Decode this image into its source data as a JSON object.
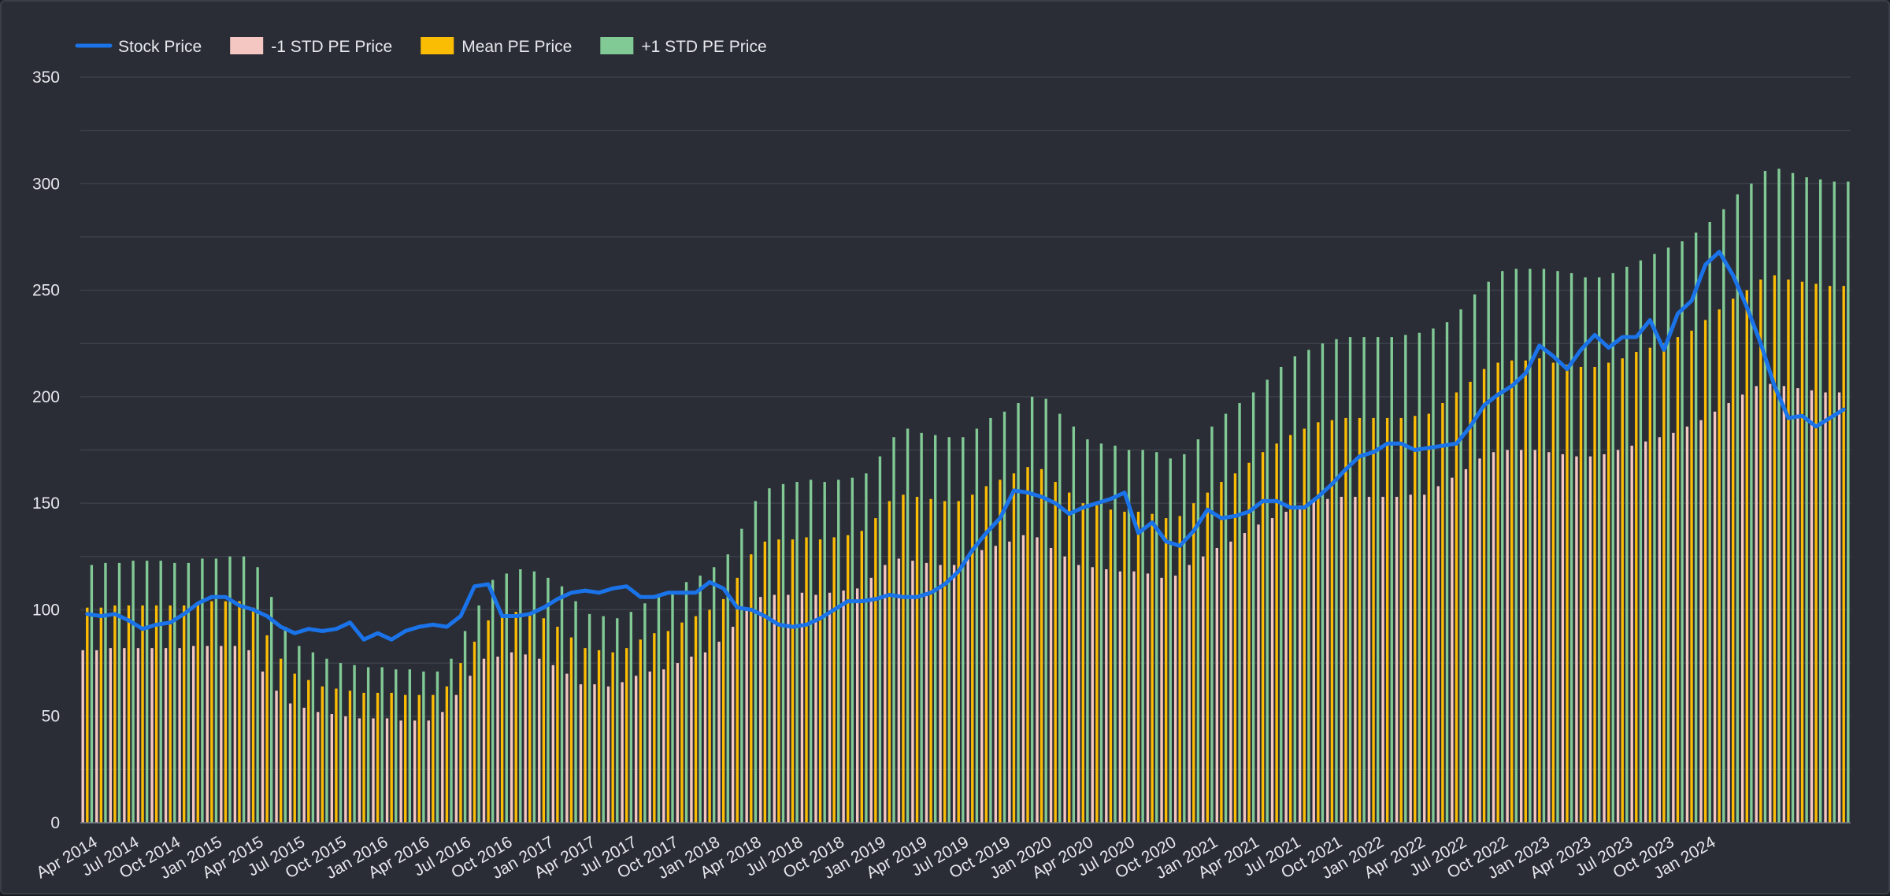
{
  "chart_data": {
    "type": "bar",
    "title": "",
    "xlabel": "",
    "ylabel": "",
    "ylim": [
      0,
      350
    ],
    "yticks": [
      "0",
      "50",
      "100",
      "150",
      "200",
      "250",
      "300",
      "350"
    ],
    "grid": true,
    "legend_position": "top-left",
    "x_tick_labels": [
      "Apr 2014",
      "Jul 2014",
      "Oct 2014",
      "Jan 2015",
      "Apr 2015",
      "Jul 2015",
      "Oct 2015",
      "Jan 2016",
      "Apr 2016",
      "Jul 2016",
      "Oct 2016",
      "Jan 2017",
      "Apr 2017",
      "Jul 2017",
      "Oct 2017",
      "Jan 2018",
      "Apr 2018",
      "Jul 2018",
      "Oct 2018",
      "Jan 2019",
      "Apr 2019",
      "Jul 2019",
      "Oct 2019",
      "Jan 2020",
      "Apr 2020",
      "Jul 2020",
      "Oct 2020",
      "Jan 2021",
      "Apr 2021",
      "Jul 2021",
      "Oct 2021",
      "Jan 2022",
      "Apr 2022",
      "Jul 2022",
      "Oct 2022",
      "Jan 2023",
      "Apr 2023",
      "Jul 2023",
      "Oct 2023",
      "Jan 2024"
    ],
    "x_start_month": "2014-04",
    "series": [
      {
        "name": "Stock Price",
        "kind": "line",
        "color": "#1a73e8",
        "values": [
          98,
          97,
          98,
          95,
          91,
          93,
          94,
          98,
          103,
          106,
          106,
          102,
          100,
          97,
          92,
          89,
          91,
          90,
          91,
          94,
          86,
          89,
          86,
          90,
          92,
          93,
          92,
          97,
          111,
          112,
          97,
          97,
          98,
          101,
          105,
          108,
          109,
          108,
          110,
          111,
          106,
          106,
          108,
          108,
          108,
          113,
          110,
          101,
          100,
          97,
          93,
          92,
          93,
          96,
          100,
          104,
          104,
          105,
          107,
          106,
          106,
          108,
          112,
          118,
          128,
          136,
          143,
          156,
          155,
          153,
          150,
          145,
          148,
          150,
          152,
          155,
          136,
          141,
          132,
          130,
          137,
          147,
          143,
          144,
          146,
          151,
          151,
          148,
          148,
          153,
          159,
          166,
          172,
          174,
          178,
          178,
          175,
          176,
          177,
          178,
          186,
          196,
          201,
          205,
          211,
          224,
          219,
          213,
          222,
          229,
          223,
          228,
          228,
          236,
          222,
          239,
          245,
          262,
          268,
          257,
          242,
          225,
          205,
          190,
          191,
          186,
          190,
          194
        ]
      },
      {
        "name": "-1 STD PE Price",
        "kind": "bar",
        "color": "#f4c7c3",
        "values": [
          81,
          81,
          82,
          82,
          82,
          82,
          82,
          82,
          83,
          83,
          83,
          83,
          81,
          71,
          62,
          56,
          54,
          52,
          51,
          50,
          49,
          49,
          49,
          48,
          48,
          48,
          52,
          60,
          69,
          77,
          78,
          80,
          79,
          77,
          74,
          70,
          65,
          65,
          64,
          66,
          69,
          71,
          72,
          75,
          78,
          80,
          85,
          92,
          101,
          106,
          107,
          107,
          108,
          107,
          108,
          109,
          110,
          115,
          121,
          124,
          123,
          122,
          121,
          121,
          124,
          128,
          130,
          132,
          135,
          134,
          129,
          125,
          121,
          120,
          119,
          118,
          118,
          117,
          115,
          116,
          121,
          125,
          129,
          132,
          136,
          140,
          143,
          146,
          149,
          151,
          152,
          153,
          153,
          153,
          153,
          153,
          154,
          154,
          158,
          162,
          166,
          171,
          174,
          175,
          175,
          175,
          174,
          173,
          172,
          172,
          173,
          175,
          177,
          179,
          181,
          183,
          186,
          189,
          193,
          197,
          201,
          205,
          206,
          205,
          204,
          203,
          202,
          202
        ]
      },
      {
        "name": "Mean PE Price",
        "kind": "bar",
        "color": "#fbbc04",
        "values": [
          101,
          101,
          102,
          102,
          102,
          102,
          102,
          102,
          103,
          104,
          104,
          104,
          101,
          88,
          77,
          70,
          67,
          64,
          63,
          62,
          61,
          61,
          61,
          60,
          60,
          60,
          64,
          75,
          85,
          95,
          97,
          99,
          98,
          96,
          92,
          87,
          82,
          81,
          80,
          82,
          86,
          89,
          90,
          94,
          97,
          100,
          105,
          115,
          126,
          132,
          133,
          133,
          134,
          133,
          134,
          135,
          137,
          143,
          151,
          154,
          153,
          152,
          151,
          151,
          154,
          158,
          161,
          164,
          167,
          166,
          160,
          155,
          150,
          149,
          147,
          146,
          146,
          145,
          143,
          144,
          150,
          155,
          160,
          164,
          169,
          174,
          178,
          182,
          185,
          188,
          189,
          190,
          190,
          190,
          190,
          190,
          191,
          192,
          197,
          202,
          207,
          213,
          216,
          217,
          217,
          218,
          216,
          215,
          214,
          214,
          216,
          218,
          221,
          223,
          225,
          228,
          231,
          236,
          241,
          246,
          250,
          255,
          257,
          255,
          254,
          253,
          252,
          252
        ]
      },
      {
        "name": "+1 STD PE Price",
        "kind": "bar",
        "color": "#81c995",
        "values": [
          121,
          122,
          122,
          123,
          123,
          123,
          122,
          122,
          124,
          124,
          125,
          125,
          120,
          106,
          92,
          83,
          80,
          77,
          75,
          74,
          73,
          73,
          72,
          72,
          71,
          71,
          77,
          90,
          102,
          114,
          117,
          119,
          118,
          115,
          111,
          104,
          98,
          97,
          96,
          99,
          103,
          107,
          108,
          113,
          116,
          120,
          126,
          138,
          151,
          157,
          159,
          160,
          161,
          160,
          161,
          162,
          164,
          172,
          181,
          185,
          183,
          182,
          181,
          181,
          185,
          190,
          193,
          197,
          200,
          199,
          192,
          186,
          180,
          178,
          177,
          175,
          175,
          174,
          171,
          173,
          180,
          186,
          192,
          197,
          202,
          208,
          214,
          219,
          222,
          225,
          227,
          228,
          228,
          228,
          228,
          229,
          230,
          232,
          235,
          241,
          248,
          254,
          259,
          260,
          260,
          260,
          259,
          258,
          256,
          256,
          258,
          261,
          264,
          267,
          270,
          273,
          277,
          282,
          288,
          295,
          300,
          306,
          307,
          305,
          303,
          302,
          301,
          301
        ]
      }
    ]
  }
}
